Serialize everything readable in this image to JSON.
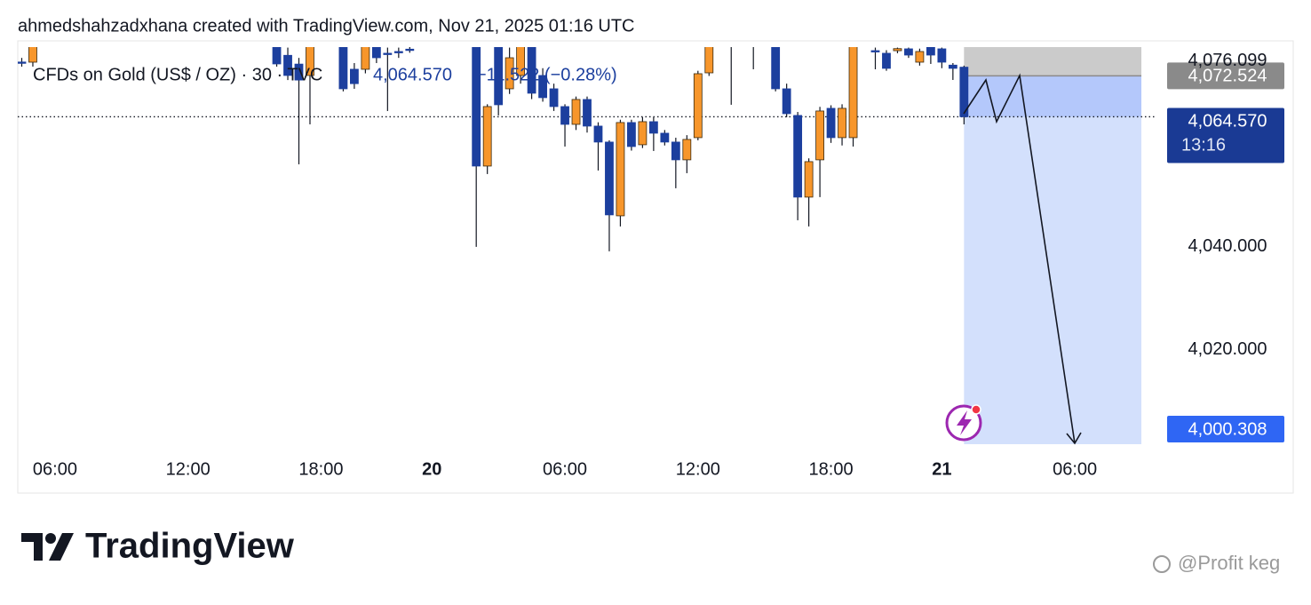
{
  "chart_data": {
    "type": "candlestick",
    "title": "ahmedshahzadxhana created with TradingView.com, Nov 21, 2025 01:16 UTC",
    "legend_symbol": "CFDs on Gold (US$ / OZ) · 30 · TVC",
    "legend_price": "4,064.570",
    "legend_change": "−11.522 (−0.28%)",
    "up_color": "#f7962b",
    "down_color": "#1c3f9e",
    "x": [
      4.5,
      5.0,
      16.0,
      16.5,
      17.0,
      17.5,
      19.0,
      19.5,
      20.0,
      20.5,
      21.0,
      21.5,
      22.0,
      25.0,
      25.5,
      26.0,
      26.5,
      27.0,
      27.5,
      28.0,
      28.5,
      29.0,
      29.5,
      30.0,
      30.5,
      31.0,
      31.5,
      32.0,
      32.5,
      33.0,
      33.5,
      34.0,
      34.5,
      35.0,
      35.5,
      36.5,
      37.5,
      38.5,
      39.0,
      39.5,
      40.0,
      40.5,
      41.0,
      41.5,
      42.0,
      43.0,
      43.5,
      44.0,
      44.5,
      45.0,
      45.5,
      46.0,
      46.5,
      47.0
    ],
    "open": [
      4075.2,
      4075.17,
      4080,
      4076.5,
      4074.8,
      4072.59,
      4080,
      4073.8,
      4073.79,
      4079,
      4076.9,
      4077.24,
      4077.7,
      4079,
      4055,
      4079,
      4070,
      4072.59,
      4079,
      4072.59,
      4070,
      4066.55,
      4063.1,
      4067.93,
      4062.76,
      4059.66,
      4045.34,
      4063.45,
      4059.14,
      4063.62,
      4061.38,
      4059.66,
      4056.21,
      4060.52,
      4073.1,
      4079.5,
      4079.5,
      4079,
      4070,
      4064.83,
      4048.97,
      4056.21,
      4066.21,
      4060.52,
      4060.52,
      4077.41,
      4076.9,
      4077.4,
      4077.76,
      4075.17,
      4078.1,
      4077.76,
      4074.6,
      4074.2
    ],
    "high": [
      4076,
      4080,
      4081,
      4078,
      4076,
      4080,
      4081,
      4075,
      4080,
      4080,
      4078,
      4078,
      4079,
      4080,
      4067,
      4080,
      4078,
      4080,
      4080,
      4074,
      4071,
      4067,
      4068.5,
      4068.5,
      4063.5,
      4060,
      4064,
      4064,
      4064.5,
      4064.5,
      4062,
      4060.5,
      4061,
      4073.5,
      4080,
      4081,
      4081,
      4080,
      4071,
      4065.5,
      4056.5,
      4066.5,
      4066.8,
      4067,
      4080,
      4078,
      4077.5,
      4078,
      4078,
      4077.8,
      4079,
      4078,
      4075,
      4074.5
    ],
    "low": [
      4074.3,
      4074.31,
      4074.3,
      4071.7,
      4055.34,
      4063.1,
      4069.5,
      4070,
      4073,
      4075,
      4065.69,
      4076,
      4077,
      4039.31,
      4053.45,
      4064.83,
      4069,
      4071,
      4068,
      4067.5,
      4065.7,
      4058.79,
      4062,
      4061.5,
      4054.14,
      4038.45,
      4043.28,
      4058,
      4058.5,
      4057.93,
      4059,
      4050.69,
      4053.62,
      4060,
      4072.5,
      4066.9,
      4073.79,
      4069.5,
      4064.5,
      4044.48,
      4043.28,
      4048.97,
      4059.5,
      4059,
      4058.79,
      4073.79,
      4073.5,
      4076.9,
      4076,
      4074.5,
      4074.83,
      4074,
      4071.72,
      4063.1
    ],
    "close": [
      4075.0,
      4078.5,
      4074.83,
      4072.59,
      4071.7,
      4079,
      4070,
      4071,
      4079,
      4076.03,
      4076.7,
      4077.1,
      4077.5,
      4055,
      4066.55,
      4066.9,
      4076.03,
      4079,
      4069.14,
      4068.28,
      4066.55,
      4063.1,
      4067.93,
      4062.76,
      4059.66,
      4045.52,
      4063.45,
      4058.79,
      4063.62,
      4061.38,
      4059.66,
      4056.21,
      4060.17,
      4072.93,
      4079,
      4079,
      4079.2,
      4070,
      4065.17,
      4048.97,
      4055.86,
      4065.69,
      4060.52,
      4066.21,
      4079,
      4077.2,
      4073.97,
      4077.8,
      4076.55,
      4077.24,
      4076.55,
      4075.17,
      4073.97,
      4064.57
    ],
    "xlim": [
      4.32,
      55.6
    ],
    "ylim": [
      4001,
      4078.1
    ],
    "xticks": [
      {
        "value": 6,
        "label": "06:00"
      },
      {
        "value": 12,
        "label": "12:00"
      },
      {
        "value": 18,
        "label": "18:00"
      },
      {
        "value": 23,
        "label": "20"
      },
      {
        "value": 29,
        "label": "06:00"
      },
      {
        "value": 35,
        "label": "12:00"
      },
      {
        "value": 41,
        "label": "18:00"
      },
      {
        "value": 46,
        "label": "21"
      },
      {
        "value": 52,
        "label": "06:00"
      }
    ],
    "yticks": [
      {
        "value": 4076.099,
        "label": "4,076.099"
      },
      {
        "value": 4040,
        "label": "4,040.000"
      },
      {
        "value": 4020,
        "label": "4,020.000"
      }
    ],
    "last_price": {
      "value": 4064.57,
      "label": "4,064.570"
    },
    "countdown": "13:16",
    "position": {
      "x_start": 47,
      "x_end": 55,
      "entry": {
        "value": 4072.524,
        "label": "4,072.524"
      },
      "target": {
        "value": 4000.308,
        "label": "4,000.308"
      }
    }
  },
  "footer": {
    "brand": "TradingView",
    "watermark": "@Profit keg"
  }
}
